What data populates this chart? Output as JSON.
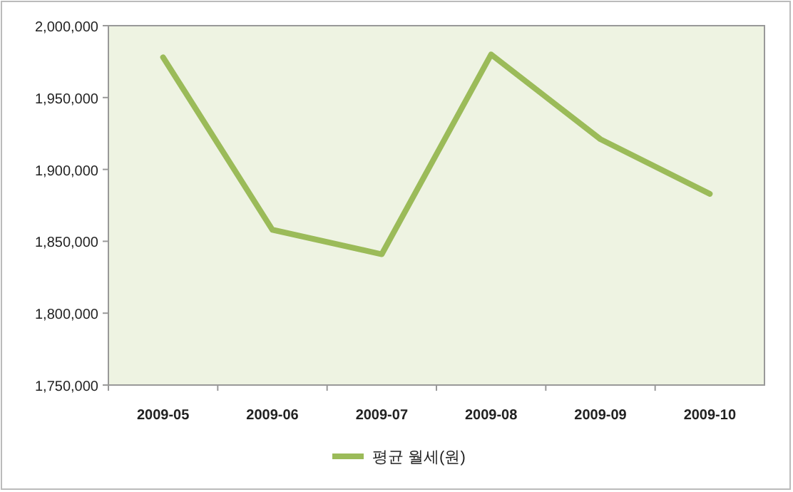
{
  "chart_data": {
    "type": "line",
    "categories": [
      "2009-05",
      "2009-06",
      "2009-07",
      "2009-08",
      "2009-09",
      "2009-10"
    ],
    "series": [
      {
        "name": "평균 월세(원)",
        "color": "#9bbb59",
        "values": [
          1978000,
          1858000,
          1841000,
          1980000,
          1921000,
          1883000
        ]
      }
    ],
    "ylim": [
      1750000,
      2000000
    ],
    "yticks": [
      {
        "value": 1750000,
        "label": "1,750,000"
      },
      {
        "value": 1800000,
        "label": "1,800,000"
      },
      {
        "value": 1850000,
        "label": "1,850,000"
      },
      {
        "value": 1900000,
        "label": "1,900,000"
      },
      {
        "value": 1950000,
        "label": "1,950,000"
      },
      {
        "value": 2000000,
        "label": "2,000,000"
      }
    ],
    "legend": "bottom"
  }
}
